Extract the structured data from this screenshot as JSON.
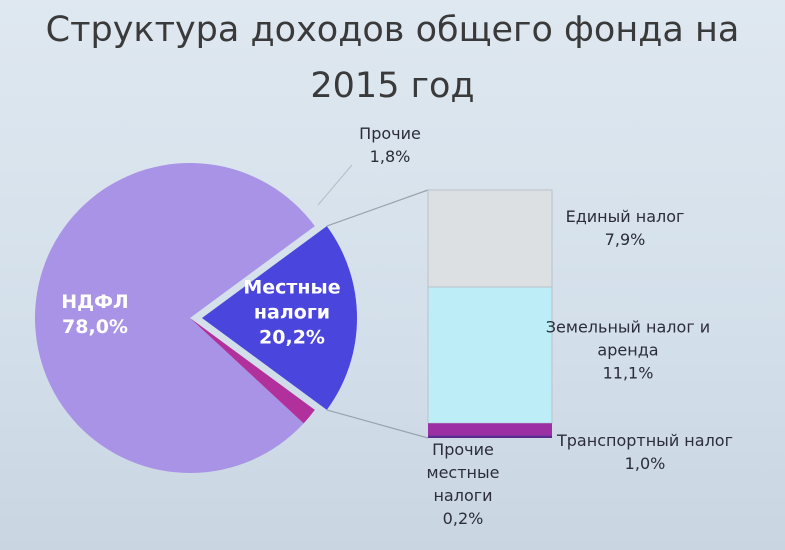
{
  "chart_data": {
    "type": "pie",
    "title": "Структура доходов общего фонда на 2015 год",
    "categories": [
      "НДФЛ",
      "Местные налоги",
      "Прочие"
    ],
    "values": [
      78.0,
      20.2,
      1.8
    ],
    "value_labels": [
      "78,0%",
      "20,2%",
      "1,8%"
    ],
    "colors": [
      "#a893e6",
      "#4a45dc",
      "#b2309c"
    ],
    "breakdown": {
      "categories": [
        "Единый налог",
        "Земельный налог и аренда",
        "Транспортный налог",
        "Прочие местные налоги"
      ],
      "values": [
        7.9,
        11.1,
        1.0,
        0.2
      ],
      "value_labels": [
        "7,9%",
        "11,1%",
        "1,0%",
        "0,2%"
      ],
      "colors": [
        "#dde0e2",
        "#bdeef7",
        "#9c2fa4",
        "#5a2a90"
      ]
    }
  }
}
